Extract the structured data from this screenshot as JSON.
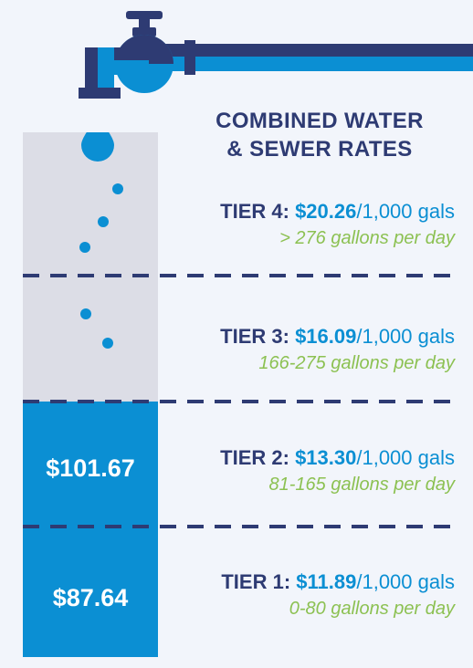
{
  "title": {
    "line1": "COMBINED WATER",
    "line2": "& SEWER RATES"
  },
  "tiers": [
    {
      "label": "TIER 4:",
      "rate": "$20.26",
      "unit": "/1,000 gals",
      "usage": "> 276 gallons per day"
    },
    {
      "label": "TIER 3:",
      "rate": "$16.09",
      "unit": "/1,000 gals",
      "usage": "166-275 gallons per day"
    },
    {
      "label": "TIER 2:",
      "rate": "$13.30",
      "unit": "/1,000 gals",
      "usage": "81-165 gallons per day"
    },
    {
      "label": "TIER 1:",
      "rate": "$11.89",
      "unit": "/1,000 gals",
      "usage": "0-80 gallons per day"
    }
  ],
  "bills": {
    "tier2": "$101.67",
    "tier1": "$87.64"
  },
  "colors": {
    "navy": "#2e3b73",
    "blue": "#0b8fd3",
    "green": "#8cc152",
    "gray": "#dcdde6",
    "background": "#f2f5fb"
  },
  "icons": [
    "faucet-icon",
    "water-drop-icon"
  ]
}
